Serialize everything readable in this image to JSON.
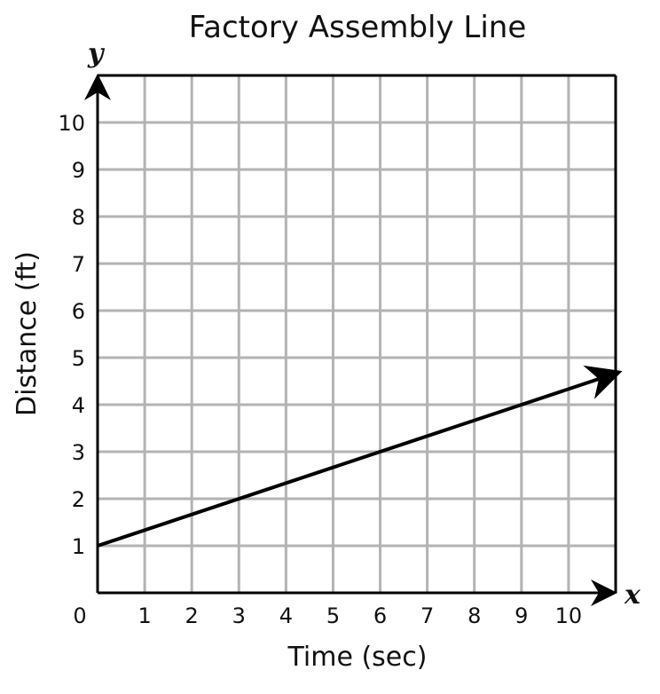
{
  "chart_data": {
    "type": "line",
    "title": "Factory Assembly Line",
    "xlabel": "Time (sec)",
    "ylabel": "Distance (ft)",
    "x_axis_var": "x",
    "y_axis_var": "y",
    "origin_label": "0",
    "xlim": [
      0,
      11
    ],
    "ylim": [
      0,
      11
    ],
    "x_ticks": [
      1,
      2,
      3,
      4,
      5,
      6,
      7,
      8,
      9,
      10
    ],
    "y_ticks": [
      1,
      2,
      3,
      4,
      5,
      6,
      7,
      8,
      9,
      10
    ],
    "grid": true,
    "series": [
      {
        "x": [
          0,
          11
        ],
        "y": [
          1,
          4.6667
        ],
        "color": "#000000",
        "arrow_end": true
      }
    ],
    "colors": {
      "grid": "#b3b3b3",
      "axis": "#000000",
      "line": "#000000"
    }
  }
}
